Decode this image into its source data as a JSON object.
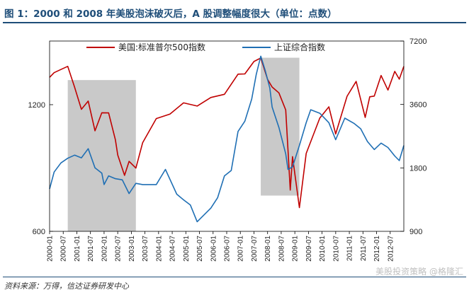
{
  "figure": {
    "title": "图 1：2000 和 2008 年美股泡沫破灭后，A 股调整幅度很大（单位：点数）",
    "source": "资料来源：万得，信达证券研发中心",
    "watermark": "美股投资策略 @格隆汇"
  },
  "chart_data": {
    "type": "line",
    "title": "",
    "legend_position": "top",
    "grid": false,
    "y_left": {
      "ticks": [
        600,
        1200
      ],
      "range": [
        600,
        1700
      ],
      "scale": "log",
      "label": ""
    },
    "y_right": {
      "ticks": [
        900,
        1800,
        3600,
        7200
      ],
      "range": [
        900,
        7200
      ],
      "scale": "log",
      "label": ""
    },
    "x_range": [
      "2000-01",
      "2013-01"
    ],
    "x_tick_labels": [
      "2000-01",
      "2000-07",
      "2001-01",
      "2001-07",
      "2002-01",
      "2002-07",
      "2003-01",
      "2003-07",
      "2004-01",
      "2004-07",
      "2005-01",
      "2005-07",
      "2006-01",
      "2006-07",
      "2007-01",
      "2007-07",
      "2008-01",
      "2008-07",
      "2009-01",
      "2009-07",
      "2010-01",
      "2010-07",
      "2011-01",
      "2011-07",
      "2012-01",
      "2012-07"
    ],
    "shaded_periods": [
      {
        "start": "2000-09",
        "end": "2003-03",
        "axis": "right",
        "from": 900,
        "to": 4700
      },
      {
        "start": "2007-10",
        "end": "2009-03",
        "axis": "right",
        "from": 1330,
        "to": 6000
      }
    ],
    "series": [
      {
        "name": "美国:标准普尔500指数",
        "axis": "left",
        "color": "#c00000",
        "x": [
          "2000-01",
          "2000-03",
          "2000-06",
          "2000-09",
          "2000-12",
          "2001-03",
          "2001-06",
          "2001-09",
          "2001-12",
          "2002-03",
          "2002-06",
          "2002-07",
          "2002-10",
          "2002-12",
          "2003-03",
          "2003-06",
          "2003-12",
          "2004-06",
          "2004-12",
          "2005-06",
          "2005-12",
          "2006-06",
          "2006-12",
          "2007-03",
          "2007-07",
          "2007-10",
          "2008-01",
          "2008-03",
          "2008-06",
          "2008-09",
          "2008-11",
          "2008-12",
          "2009-03",
          "2009-06",
          "2009-12",
          "2010-04",
          "2010-07",
          "2010-12",
          "2011-04",
          "2011-08",
          "2011-10",
          "2011-12",
          "2012-03",
          "2012-06",
          "2012-09",
          "2012-11",
          "2013-01"
        ],
        "values": [
          1394,
          1430,
          1455,
          1480,
          1320,
          1170,
          1224,
          1040,
          1148,
          1147,
          990,
          911,
          815,
          880,
          848,
          975,
          1112,
          1140,
          1212,
          1191,
          1248,
          1270,
          1418,
          1420,
          1520,
          1549,
          1378,
          1322,
          1280,
          1166,
          752,
          903,
          683,
          919,
          1115,
          1186,
          1022,
          1257,
          1363,
          1119,
          1253,
          1258,
          1408,
          1300,
          1440,
          1380,
          1480
        ]
      },
      {
        "name": "上证综合指数",
        "axis": "right",
        "color": "#1f6fb4",
        "x": [
          "2000-01",
          "2000-03",
          "2000-06",
          "2000-09",
          "2000-12",
          "2001-03",
          "2001-06",
          "2001-09",
          "2001-12",
          "2002-01",
          "2002-03",
          "2002-06",
          "2002-09",
          "2002-12",
          "2003-03",
          "2003-06",
          "2003-12",
          "2004-04",
          "2004-09",
          "2004-12",
          "2005-03",
          "2005-06",
          "2005-12",
          "2006-03",
          "2006-06",
          "2006-09",
          "2006-12",
          "2007-03",
          "2007-06",
          "2007-08",
          "2007-10",
          "2007-12",
          "2008-02",
          "2008-03",
          "2008-06",
          "2008-09",
          "2008-10",
          "2008-12",
          "2009-03",
          "2009-06",
          "2009-08",
          "2009-12",
          "2010-04",
          "2010-07",
          "2010-11",
          "2011-03",
          "2011-06",
          "2011-09",
          "2011-12",
          "2012-03",
          "2012-06",
          "2012-09",
          "2012-11",
          "2013-01"
        ],
        "values": [
          1430,
          1720,
          1900,
          2000,
          2070,
          2010,
          2220,
          1800,
          1700,
          1500,
          1650,
          1600,
          1580,
          1360,
          1520,
          1500,
          1500,
          1770,
          1350,
          1270,
          1200,
          1000,
          1160,
          1300,
          1650,
          1750,
          2680,
          3000,
          3820,
          5000,
          6100,
          5200,
          4300,
          3500,
          2800,
          2100,
          1770,
          1820,
          2300,
          2950,
          3400,
          3270,
          2950,
          2450,
          3100,
          2930,
          2760,
          2400,
          2200,
          2360,
          2250,
          2050,
          1950,
          2300
        ]
      }
    ]
  }
}
